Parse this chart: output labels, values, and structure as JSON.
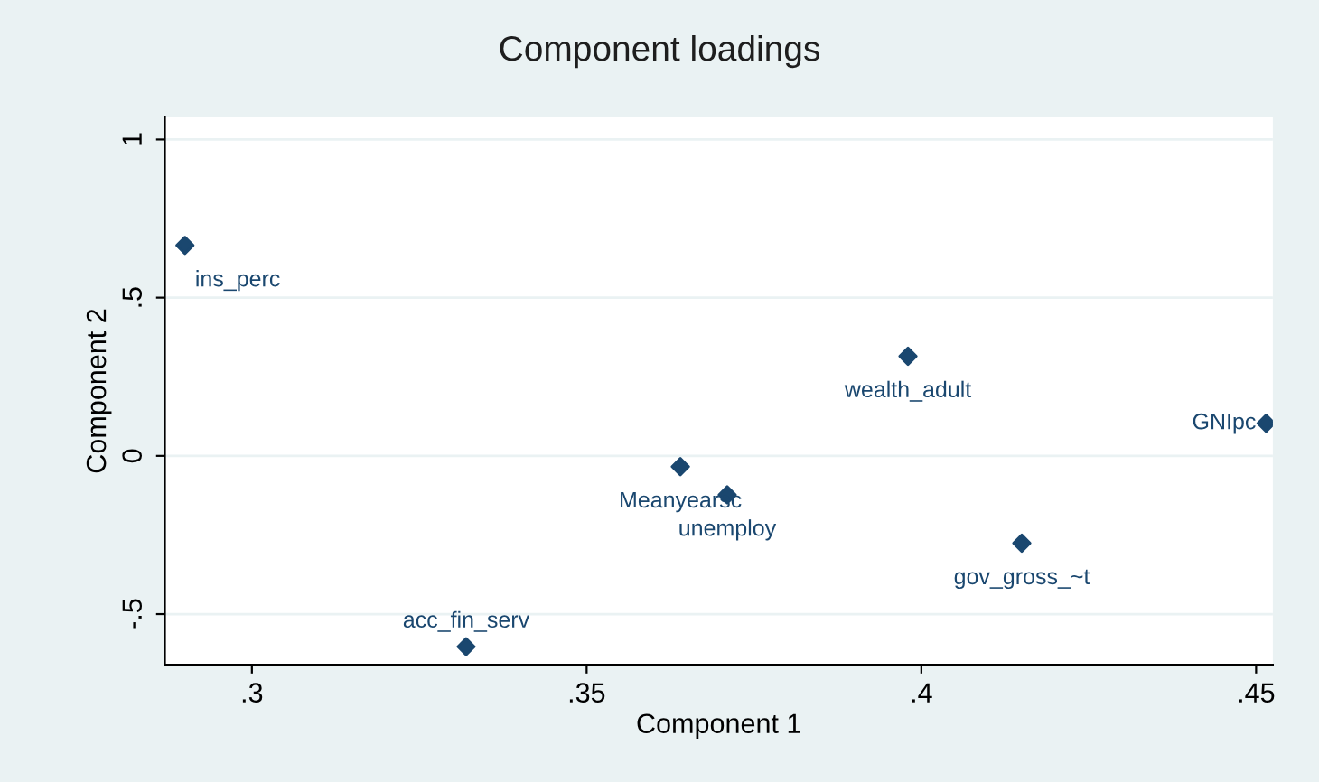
{
  "chart_data": {
    "type": "scatter",
    "title": "Component loadings",
    "xlabel": "Component 1",
    "ylabel": "Component 2",
    "x": [
      0.29,
      0.398,
      0.4515,
      0.364,
      0.371,
      0.415,
      0.332
    ],
    "series": [
      {
        "color": "#1a476f",
        "values": [
          0.665,
          0.315,
          0.103,
          -0.034,
          -0.123,
          -0.276,
          -0.603
        ]
      }
    ],
    "annotations": [
      {
        "text": "ins_perc",
        "x": 0.29,
        "y": 0.665
      },
      {
        "text": "wealth_adult",
        "x": 0.398,
        "y": 0.315
      },
      {
        "text": "GNIpc",
        "x": 0.4515,
        "y": 0.103
      },
      {
        "text": "Meanyearsc",
        "x": 0.364,
        "y": -0.034
      },
      {
        "text": "unemploy",
        "x": 0.371,
        "y": -0.123
      },
      {
        "text": "gov_gross_~t",
        "x": 0.415,
        "y": -0.276
      },
      {
        "text": "acc_fin_serv",
        "x": 0.332,
        "y": -0.603
      }
    ],
    "xlim": [
      0.287,
      0.4525
    ],
    "ylim": [
      -0.66,
      1.07
    ],
    "xticks": [
      {
        "value": 0.3,
        "label": ".3"
      },
      {
        "value": 0.35,
        "label": ".35"
      },
      {
        "value": 0.4,
        "label": ".4"
      },
      {
        "value": 0.45,
        "label": ".45"
      }
    ],
    "yticks": [
      {
        "value": -0.5,
        "label": "-.5"
      },
      {
        "value": 0,
        "label": "0"
      },
      {
        "value": 0.5,
        "label": ".5"
      },
      {
        "value": 1,
        "label": "1"
      }
    ],
    "grid": "y",
    "marker": "diamond",
    "legend": false
  }
}
